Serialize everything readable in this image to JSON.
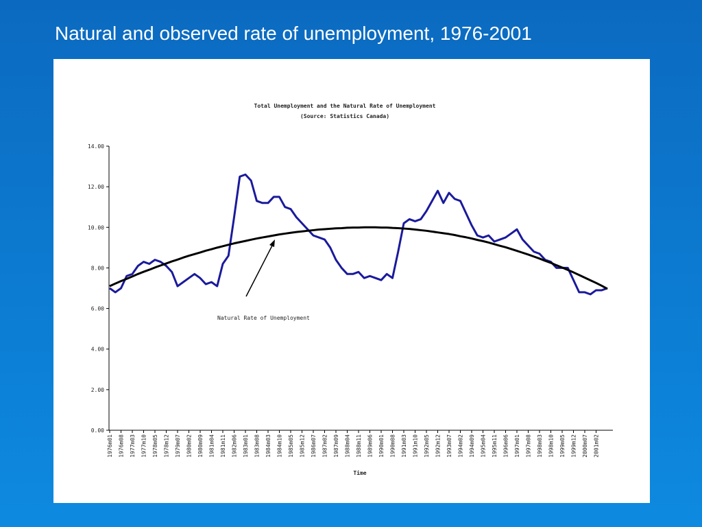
{
  "slide_title": "Natural and observed rate of unemployment, 1976-2001",
  "chart_data": {
    "type": "line",
    "title": "Total Unemployment and the Natural Rate of Unemployment",
    "subtitle": "(Source: Statistics Canada)",
    "x_label": "Time",
    "annotation": "Natural Rate of Unemployment",
    "categories": [
      "1976m01",
      null,
      "1976m08",
      null,
      "1977m03",
      null,
      "1977m10",
      null,
      "1978m05",
      null,
      "1978m12",
      null,
      "1979m07",
      null,
      "1980m02",
      null,
      "1980m09",
      null,
      "1981m04",
      null,
      "1981m11",
      null,
      "1982m06",
      null,
      "1983m01",
      null,
      "1983m08",
      null,
      "1984m03",
      null,
      "1984m10",
      null,
      "1985m05",
      null,
      "1985m12",
      null,
      "1986m07",
      null,
      "1987m02",
      null,
      "1987m09",
      null,
      "1988m04",
      null,
      "1988m11",
      null,
      "1989m06",
      null,
      "1990m01",
      null,
      "1990m08",
      null,
      "1991m03",
      null,
      "1991m10",
      null,
      "1992m05",
      null,
      "1992m12",
      null,
      "1993m07",
      null,
      "1994m02",
      null,
      "1994m09",
      null,
      "1995m04",
      null,
      "1995m11",
      null,
      "1996m06",
      null,
      "1997m01",
      null,
      "1997m08",
      null,
      "1998m03",
      null,
      "1998m10",
      null,
      "1999m05",
      null,
      "1999m12",
      null,
      "2000m07",
      null,
      "2001m02",
      null,
      null
    ],
    "series": [
      {
        "color": "#1a1a9c",
        "values": [
          7.0,
          6.8,
          7.0,
          7.6,
          7.7,
          8.1,
          8.3,
          8.2,
          8.4,
          8.3,
          8.1,
          7.8,
          7.1,
          7.3,
          7.5,
          7.7,
          7.5,
          7.2,
          7.3,
          7.1,
          8.2,
          8.6,
          10.5,
          12.5,
          12.6,
          12.3,
          11.3,
          11.2,
          11.2,
          11.5,
          11.5,
          11.0,
          10.9,
          10.5,
          10.2,
          9.9,
          9.6,
          9.5,
          9.4,
          9.0,
          8.4,
          8.0,
          7.7,
          7.7,
          7.8,
          7.5,
          7.6,
          7.5,
          7.4,
          7.7,
          7.5,
          8.8,
          10.2,
          10.4,
          10.3,
          10.4,
          10.8,
          11.3,
          11.8,
          11.2,
          11.7,
          11.4,
          11.3,
          10.7,
          10.1,
          9.6,
          9.5,
          9.6,
          9.3,
          9.4,
          9.5,
          9.7,
          9.9,
          9.4,
          9.1,
          8.8,
          8.7,
          8.4,
          8.3,
          8.0,
          8.0,
          8.0,
          7.4,
          6.8,
          6.8,
          6.7,
          6.9,
          6.9,
          7.0
        ]
      },
      {
        "color": "#000000",
        "values": [
          7.1,
          7.23,
          7.35,
          7.46,
          7.58,
          7.7,
          7.81,
          7.91,
          8.02,
          8.12,
          8.22,
          8.32,
          8.41,
          8.51,
          8.6,
          8.68,
          8.76,
          8.85,
          8.92,
          9.0,
          9.07,
          9.14,
          9.21,
          9.27,
          9.33,
          9.39,
          9.45,
          9.5,
          9.55,
          9.6,
          9.65,
          9.69,
          9.73,
          9.77,
          9.8,
          9.83,
          9.86,
          9.89,
          9.91,
          9.93,
          9.95,
          9.96,
          9.98,
          9.99,
          9.99,
          10.0,
          10.0,
          10.0,
          9.99,
          9.99,
          9.97,
          9.96,
          9.94,
          9.92,
          9.89,
          9.86,
          9.83,
          9.79,
          9.75,
          9.71,
          9.67,
          9.62,
          9.56,
          9.51,
          9.45,
          9.38,
          9.32,
          9.25,
          9.17,
          9.09,
          9.02,
          8.93,
          8.84,
          8.75,
          8.66,
          8.56,
          8.46,
          8.35,
          8.25,
          8.13,
          8.02,
          7.9,
          7.78,
          7.65,
          7.52,
          7.39,
          7.26,
          7.12,
          6.97
        ]
      }
    ],
    "ylim": [
      0,
      14
    ],
    "yticks": [
      {
        "value": 0,
        "label": "0.00"
      },
      {
        "value": 2,
        "label": "2.00"
      },
      {
        "value": 4,
        "label": "4.00"
      },
      {
        "value": 6,
        "label": "6.00"
      },
      {
        "value": 8,
        "label": "8.00"
      },
      {
        "value": 10,
        "label": "10.00"
      },
      {
        "value": 12,
        "label": "12.00"
      },
      {
        "value": 14,
        "label": "14.00"
      }
    ],
    "grid": false
  }
}
